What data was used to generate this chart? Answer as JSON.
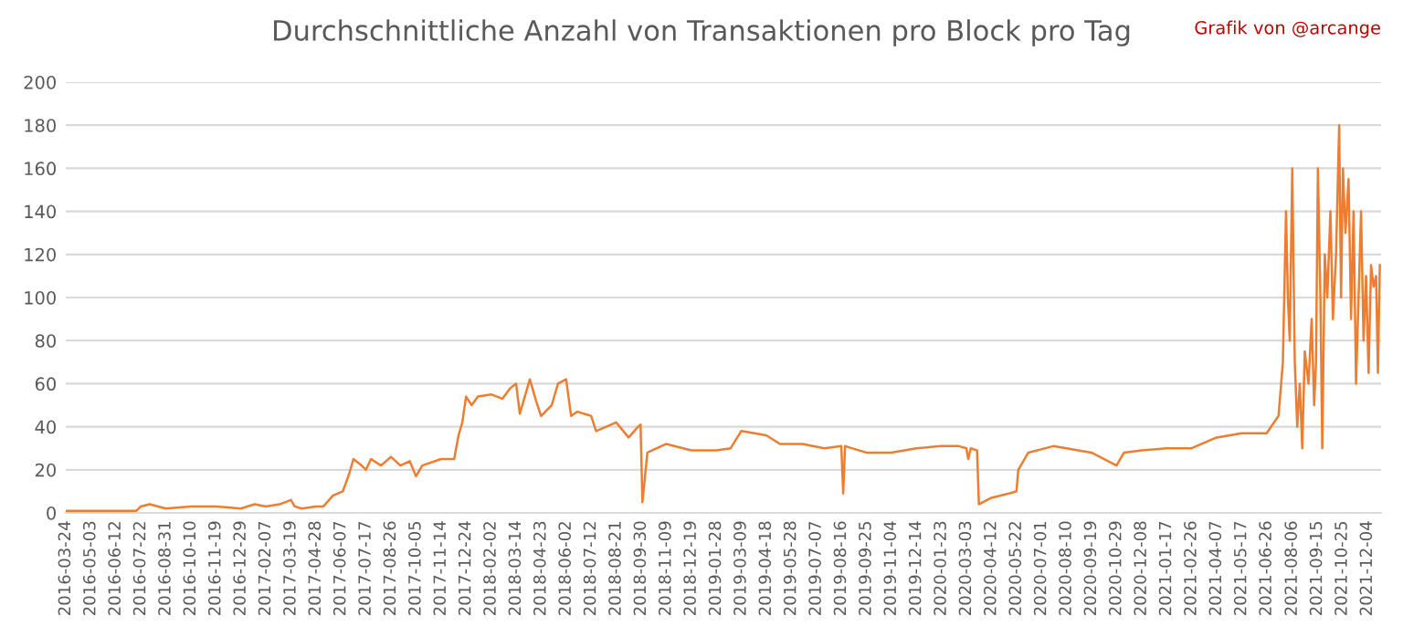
{
  "chart_data": {
    "type": "line",
    "title": "Durchschnittliche Anzahl von Transaktionen pro Block pro Tag",
    "annotations": [
      "Grafik von @arcange"
    ],
    "series": [
      {
        "color": "#ed7d31",
        "x": [
          "2016-03-24",
          "2016-05-03",
          "2016-06-12",
          "2016-07-15",
          "2016-07-22",
          "2016-08-05",
          "2016-08-31",
          "2016-10-10",
          "2016-11-19",
          "2016-12-29",
          "2017-01-20",
          "2017-02-07",
          "2017-03-01",
          "2017-03-19",
          "2017-03-25",
          "2017-04-05",
          "2017-04-28",
          "2017-05-10",
          "2017-05-25",
          "2017-06-10",
          "2017-06-20",
          "2017-06-27",
          "2017-07-10",
          "2017-07-17",
          "2017-07-25",
          "2017-08-10",
          "2017-08-26",
          "2017-09-10",
          "2017-09-25",
          "2017-10-05",
          "2017-10-15",
          "2017-11-14",
          "2017-12-05",
          "2017-12-12",
          "2017-12-18",
          "2017-12-24",
          "2018-01-02",
          "2018-01-12",
          "2018-02-02",
          "2018-02-20",
          "2018-03-05",
          "2018-03-14",
          "2018-03-20",
          "2018-04-05",
          "2018-04-15",
          "2018-04-23",
          "2018-05-10",
          "2018-05-20",
          "2018-06-02",
          "2018-06-10",
          "2018-06-20",
          "2018-07-12",
          "2018-07-20",
          "2018-08-05",
          "2018-08-21",
          "2018-09-10",
          "2018-09-25",
          "2018-09-29",
          "2018-10-02",
          "2018-10-10",
          "2018-11-09",
          "2018-12-19",
          "2019-01-28",
          "2019-02-20",
          "2019-03-09",
          "2019-04-18",
          "2019-05-10",
          "2019-06-15",
          "2019-07-20",
          "2019-08-16",
          "2019-08-19",
          "2019-08-22",
          "2019-09-25",
          "2019-11-04",
          "2019-12-14",
          "2020-01-23",
          "2020-02-20",
          "2020-03-03",
          "2020-03-06",
          "2020-03-10",
          "2020-03-20",
          "2020-03-23",
          "2020-04-12",
          "2020-05-10",
          "2020-05-22",
          "2020-05-25",
          "2020-06-10",
          "2020-07-20",
          "2020-08-10",
          "2020-09-19",
          "2020-10-29",
          "2020-11-10",
          "2020-12-08",
          "2021-01-17",
          "2021-02-26",
          "2021-04-07",
          "2021-05-17",
          "2021-06-26",
          "2021-07-15",
          "2021-07-22",
          "2021-07-27",
          "2021-07-30",
          "2021-08-02",
          "2021-08-06",
          "2021-08-10",
          "2021-08-14",
          "2021-08-18",
          "2021-08-22",
          "2021-08-26",
          "2021-09-01",
          "2021-09-06",
          "2021-09-10",
          "2021-09-13",
          "2021-09-16",
          "2021-09-20",
          "2021-09-23",
          "2021-09-27",
          "2021-10-01",
          "2021-10-06",
          "2021-10-10",
          "2021-10-15",
          "2021-10-20",
          "2021-10-23",
          "2021-10-26",
          "2021-10-30",
          "2021-11-04",
          "2021-11-08",
          "2021-11-12",
          "2021-11-16",
          "2021-11-20",
          "2021-11-24",
          "2021-11-28",
          "2021-12-02",
          "2021-12-06",
          "2021-12-10",
          "2021-12-14",
          "2021-12-18",
          "2021-12-21",
          "2021-12-24"
        ],
        "values": [
          1,
          1,
          1,
          1,
          3,
          4,
          2,
          3,
          3,
          2,
          4,
          3,
          4,
          6,
          3,
          2,
          3,
          3,
          8,
          10,
          18,
          25,
          22,
          20,
          25,
          22,
          26,
          22,
          24,
          17,
          22,
          25,
          25,
          36,
          42,
          54,
          50,
          54,
          55,
          53,
          58,
          60,
          46,
          62,
          52,
          45,
          50,
          60,
          62,
          45,
          47,
          45,
          38,
          40,
          42,
          35,
          40,
          41,
          5,
          28,
          32,
          29,
          29,
          30,
          38,
          36,
          32,
          32,
          30,
          31,
          9,
          31,
          28,
          28,
          30,
          31,
          31,
          30,
          25,
          30,
          29,
          4,
          7,
          9,
          10,
          20,
          28,
          31,
          30,
          28,
          22,
          28,
          29,
          30,
          30,
          35,
          37,
          37,
          45,
          70,
          140,
          100,
          80,
          160,
          70,
          40,
          60,
          30,
          75,
          60,
          90,
          50,
          70,
          160,
          100,
          30,
          120,
          100,
          140,
          90,
          120,
          180,
          100,
          160,
          130,
          155,
          90,
          140,
          60,
          100,
          140,
          80,
          110,
          65,
          115,
          105,
          110,
          65,
          115
        ]
      }
    ],
    "xlim": [
      "2016-03-24",
      "2021-12-26"
    ],
    "xticks": [
      "2016-03-24",
      "2016-05-03",
      "2016-06-12",
      "2016-07-22",
      "2016-08-31",
      "2016-10-10",
      "2016-11-19",
      "2016-12-29",
      "2017-02-07",
      "2017-03-19",
      "2017-04-28",
      "2017-06-07",
      "2017-07-17",
      "2017-08-26",
      "2017-10-05",
      "2017-11-14",
      "2017-12-24",
      "2018-02-02",
      "2018-03-14",
      "2018-04-23",
      "2018-06-02",
      "2018-07-12",
      "2018-08-21",
      "2018-09-30",
      "2018-11-09",
      "2018-12-19",
      "2019-01-28",
      "2019-03-09",
      "2019-04-18",
      "2019-05-28",
      "2019-07-07",
      "2019-08-16",
      "2019-09-25",
      "2019-11-04",
      "2019-12-14",
      "2020-01-23",
      "2020-03-03",
      "2020-04-12",
      "2020-05-22",
      "2020-07-01",
      "2020-08-10",
      "2020-09-19",
      "2020-10-29",
      "2020-12-08",
      "2021-01-17",
      "2021-02-26",
      "2021-04-07",
      "2021-05-17",
      "2021-06-26",
      "2021-08-06",
      "2021-09-15",
      "2021-10-25",
      "2021-12-04"
    ],
    "ylim": [
      0,
      200
    ],
    "yticks": [
      0,
      20,
      40,
      60,
      80,
      100,
      120,
      140,
      160,
      180,
      200
    ],
    "grid": "y",
    "legend": false
  }
}
